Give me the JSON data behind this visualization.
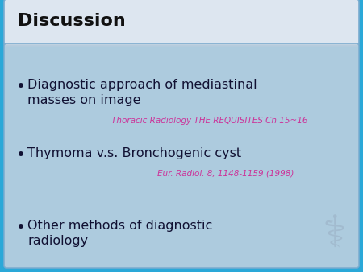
{
  "title": "Discussion",
  "title_color": "#111111",
  "title_bg_color": "#dde6f0",
  "title_border_color": "#7aabcf",
  "bg_color_outer": "#2aa8d8",
  "content_bg_color": "#bccfdf",
  "content_border_color": "#7aabcf",
  "bullets": [
    "Diagnostic approach of mediastinal\nmasses on image",
    "Thymoma v.s. Bronchogenic cyst",
    "Other methods of diagnostic\nradiology"
  ],
  "bullet_color": "#111133",
  "citations": [
    {
      "text": "Thoracic Radiology THE REQUISITES Ch 15~16",
      "after_bullet": 0,
      "color": "#cc3399"
    },
    {
      "text": "Eur. Radiol. 8, 1148-1159 (1998)",
      "after_bullet": 1,
      "color": "#cc3399"
    }
  ],
  "bullet_fontsize": 11.5,
  "citation_fontsize": 7.5,
  "title_fontsize": 16,
  "figwidth": 4.5,
  "figheight": 3.38,
  "dpi": 100
}
